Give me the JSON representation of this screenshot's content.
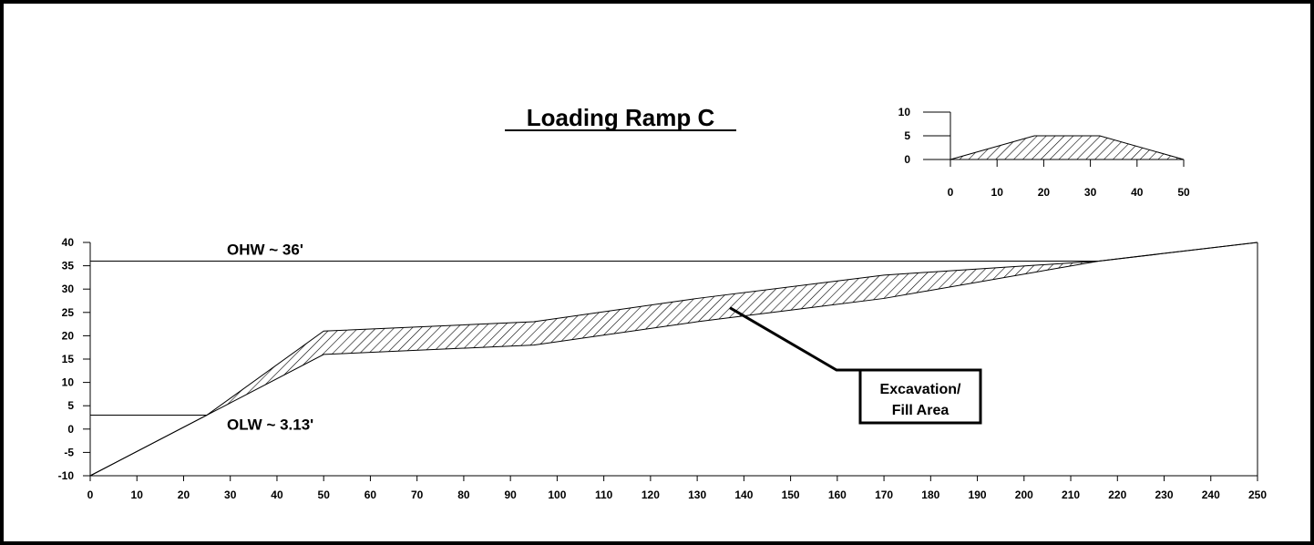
{
  "chart_data": [
    {
      "id": "main",
      "type": "line",
      "title": "Loading Ramp C",
      "xlim": [
        0,
        250
      ],
      "ylim": [
        -10,
        40
      ],
      "x_ticks": [
        0,
        10,
        20,
        30,
        40,
        50,
        60,
        70,
        80,
        90,
        100,
        110,
        120,
        130,
        140,
        150,
        160,
        170,
        180,
        190,
        200,
        210,
        220,
        230,
        240,
        250
      ],
      "y_ticks": [
        -10,
        -5,
        0,
        5,
        10,
        15,
        20,
        25,
        30,
        35,
        40
      ],
      "series": [
        {
          "role": "upper-profile",
          "points": [
            [
              0,
              -10
            ],
            [
              25,
              3
            ],
            [
              50,
              21
            ],
            [
              95,
              23
            ],
            [
              130,
              28
            ],
            [
              170,
              33
            ],
            [
              216,
              36
            ],
            [
              250,
              40
            ]
          ]
        },
        {
          "role": "lower-profile",
          "points": [
            [
              0,
              -10
            ],
            [
              25,
              3
            ],
            [
              50,
              16
            ],
            [
              95,
              18
            ],
            [
              130,
              23
            ],
            [
              170,
              28
            ],
            [
              216,
              36
            ],
            [
              250,
              40
            ]
          ]
        }
      ],
      "hatched_area": {
        "between": [
          "upper-profile",
          "lower-profile"
        ],
        "x_range": [
          25,
          216
        ]
      },
      "reference_lines": [
        {
          "label": "OHW ~ 36'",
          "y": 36,
          "x_range": [
            0,
            216
          ]
        },
        {
          "label": "OLW ~ 3.13'",
          "y": 3,
          "x_range": [
            0,
            25
          ]
        }
      ],
      "grid": false
    },
    {
      "id": "inset",
      "type": "area",
      "xlim": [
        0,
        50
      ],
      "ylim": [
        0,
        10
      ],
      "x_ticks": [
        0,
        10,
        20,
        30,
        40,
        50
      ],
      "y_ticks": [
        0,
        5,
        10
      ],
      "points": [
        [
          0,
          0
        ],
        [
          18,
          5
        ],
        [
          32,
          5
        ],
        [
          50,
          0
        ]
      ],
      "grid": false
    }
  ],
  "callout": {
    "lines": [
      "Excavation/",
      "Fill Area"
    ],
    "pointer_data": [
      137,
      26
    ]
  }
}
